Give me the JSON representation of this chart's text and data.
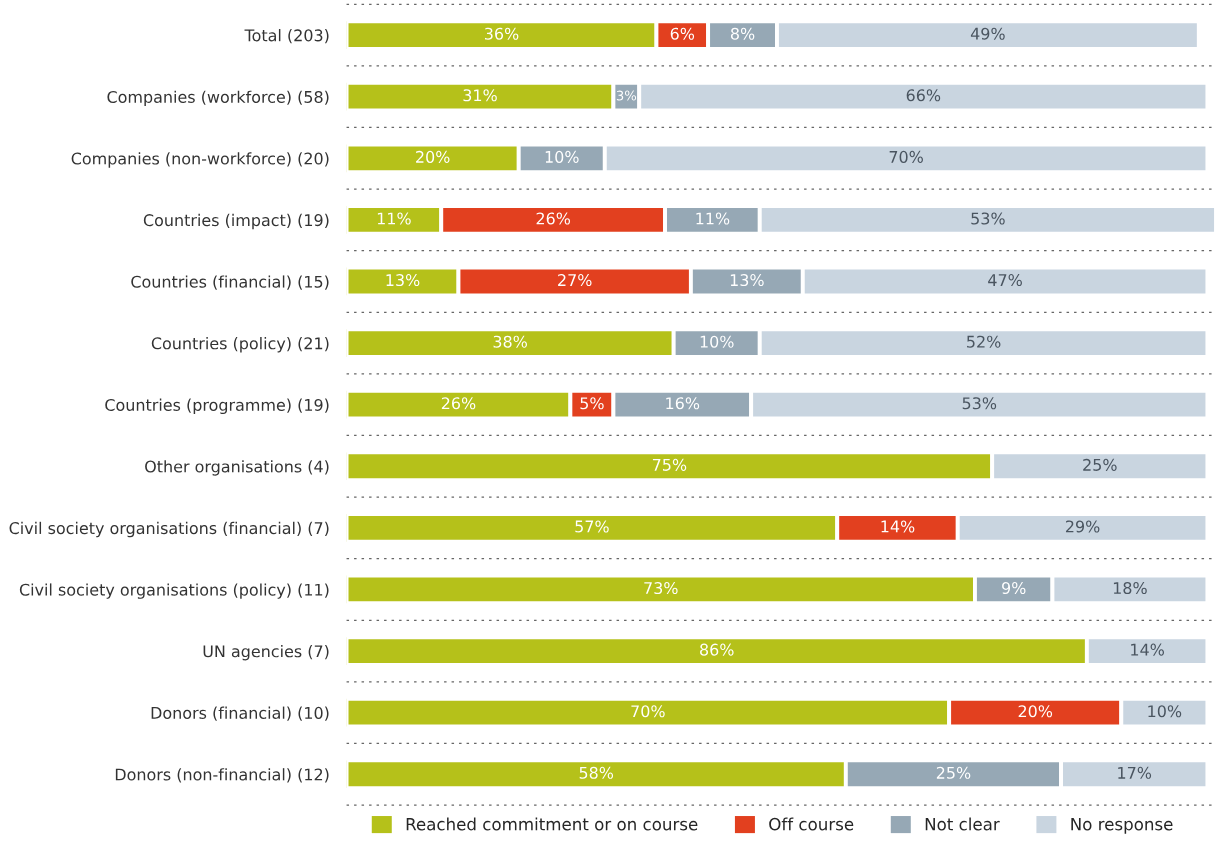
{
  "chart_data": {
    "type": "bar",
    "orientation": "horizontal",
    "stacked": true,
    "grid": "y",
    "legend": "bottom",
    "categories": [
      "Total (203)",
      "Companies (workforce) (58)",
      "Companies (non-workforce) (20)",
      "Countries (impact) (19)",
      "Countries (financial) (15)",
      "Countries (policy) (21)",
      "Countries (programme) (19)",
      "Other organisations (4)",
      "Civil society organisations (financial) (7)",
      "Civil society organisations (policy) (11)",
      "UN agencies (7)",
      "Donors (financial) (10)",
      "Donors (non-financial) (12)"
    ],
    "series": [
      {
        "name": "Reached commitment or on course",
        "color": "#b5c11a",
        "values": [
          36,
          31,
          20,
          11,
          13,
          38,
          26,
          75,
          57,
          73,
          86,
          70,
          58
        ],
        "value_labels": [
          "36%",
          "31%",
          "20%",
          "11%",
          "13%",
          "38%",
          "26%",
          "75%",
          "57%",
          "73%",
          "86%",
          "70%",
          "58%"
        ]
      },
      {
        "name": "Off course",
        "color": "#e2401f",
        "values": [
          6,
          null,
          null,
          26,
          27,
          null,
          5,
          null,
          14,
          null,
          null,
          20,
          null
        ],
        "value_labels": [
          "6%",
          null,
          null,
          "26%",
          "27%",
          null,
          "5%",
          null,
          "14%",
          null,
          null,
          "20%",
          null
        ]
      },
      {
        "name": "Not clear",
        "color": "#96a8b5",
        "values": [
          8,
          3,
          10,
          11,
          13,
          10,
          16,
          null,
          null,
          9,
          null,
          null,
          25
        ],
        "value_labels": [
          "8%",
          "3%",
          "10%",
          "11%",
          "13%",
          "10%",
          "16%",
          null,
          null,
          "9%",
          null,
          null,
          "25%"
        ]
      },
      {
        "name": "No response",
        "color": "#c9d5e0",
        "values": [
          49,
          66,
          70,
          53,
          47,
          52,
          53,
          25,
          29,
          18,
          14,
          10,
          17
        ],
        "value_labels": [
          "49%",
          "66%",
          "70%",
          "53%",
          "47%",
          "52%",
          "53%",
          "25%",
          "29%",
          "18%",
          "14%",
          "10%",
          "17%"
        ]
      }
    ]
  }
}
